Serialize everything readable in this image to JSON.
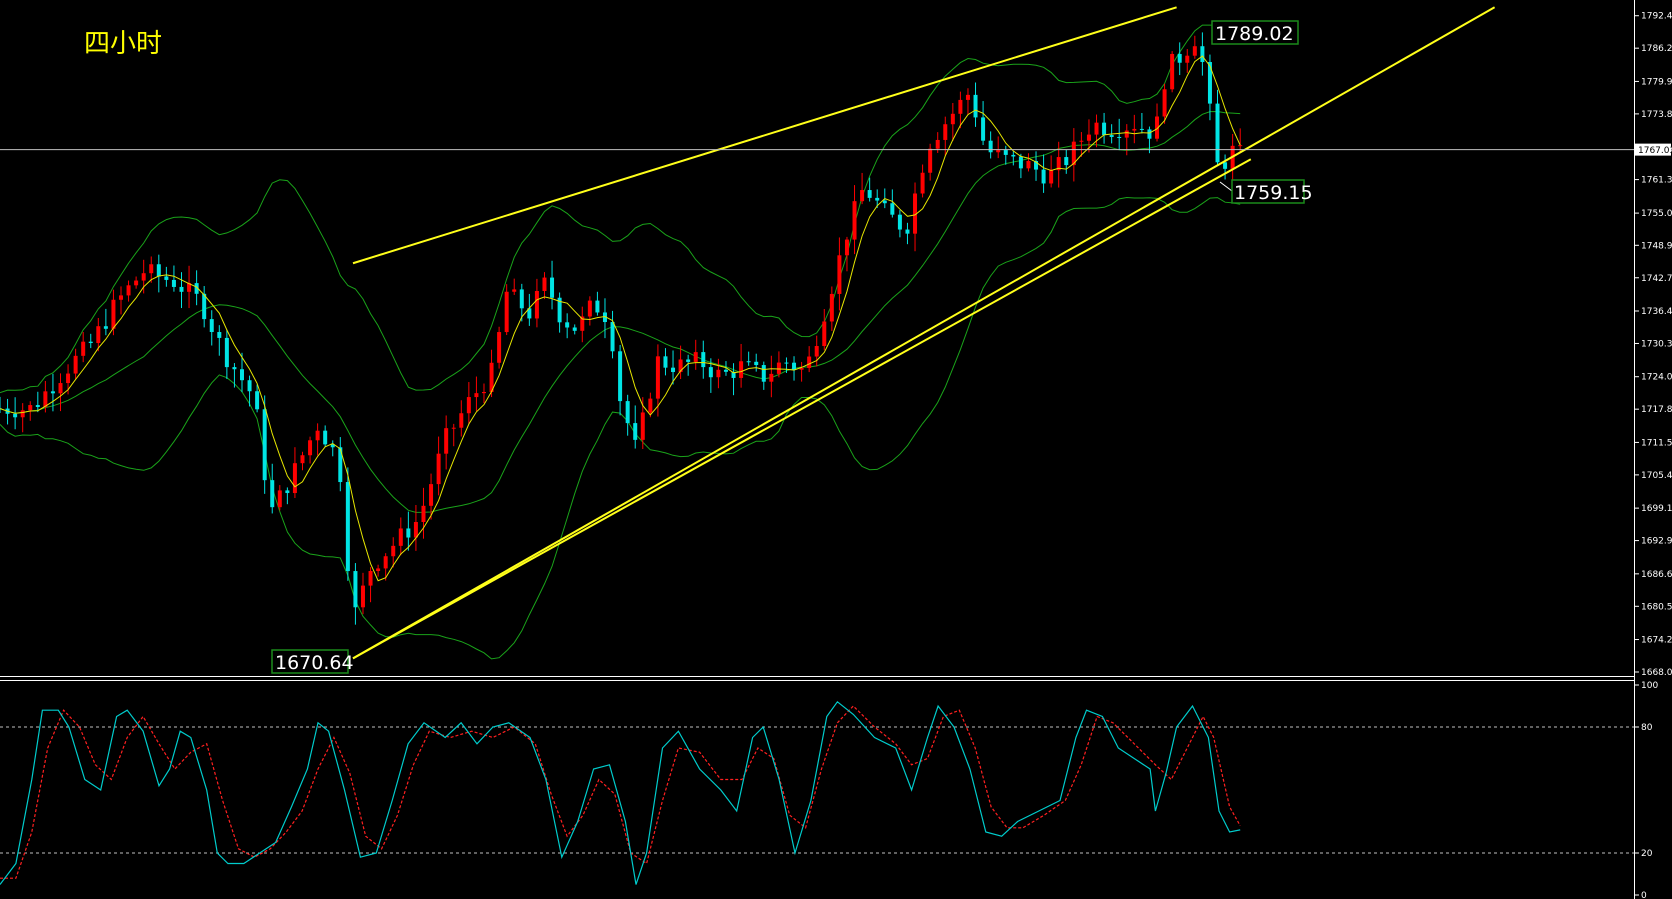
{
  "title": "四小时",
  "current_price_label": "1767.03",
  "annotations": {
    "high": "1789.02",
    "low": "1670.64",
    "recent_low": "1759.15"
  },
  "colors": {
    "background": "#000000",
    "axis": "#ffffff",
    "up": "#ff0000",
    "down": "#00e5e5",
    "bollinger": "#1aa31a",
    "ma": "#e6e600",
    "trendline": "#ffff1a",
    "title": "#ffff00",
    "stoch_k": "#00cccc",
    "stoch_d": "#ff2020",
    "label_bg": "#ffffff",
    "label_border": "#1a8a1a"
  },
  "chart_data": {
    "type": "candlestick",
    "title": "四小时",
    "ylim": [
      1668.05,
      1795.0
    ],
    "y_ticks": [
      "1792.40",
      "1786.25",
      "1779.95",
      "1773.80",
      "1767.03",
      "1761.35",
      "1755.00",
      "1748.90",
      "1742.75",
      "1736.45",
      "1730.30",
      "1724.00",
      "1717.85",
      "1711.55",
      "1705.40",
      "1699.10",
      "1692.95",
      "1686.65",
      "1680.50",
      "1674.20",
      "1668.05"
    ],
    "current_price": 1767.03,
    "channel": {
      "upper": [
        [
          0.333,
          1745.5
        ],
        [
          1.11,
          1794.0
        ]
      ],
      "lower_a": [
        [
          0.333,
          1670.64
        ],
        [
          1.18,
          1765.2
        ]
      ],
      "lower_b": [
        [
          0.333,
          1670.64
        ],
        [
          1.41,
          1794.0
        ]
      ]
    },
    "candle_anchors": [
      [
        0.0,
        1718
      ],
      [
        0.03,
        1718
      ],
      [
        0.06,
        1725
      ],
      [
        0.085,
        1730
      ],
      [
        0.11,
        1738
      ],
      [
        0.135,
        1744
      ],
      [
        0.165,
        1742
      ],
      [
        0.19,
        1738
      ],
      [
        0.21,
        1729
      ],
      [
        0.24,
        1720
      ],
      [
        0.255,
        1698
      ],
      [
        0.275,
        1705
      ],
      [
        0.3,
        1715
      ],
      [
        0.32,
        1708
      ],
      [
        0.333,
        1678
      ],
      [
        0.35,
        1688
      ],
      [
        0.37,
        1692
      ],
      [
        0.395,
        1697
      ],
      [
        0.42,
        1712
      ],
      [
        0.445,
        1720
      ],
      [
        0.465,
        1725
      ],
      [
        0.478,
        1740
      ],
      [
        0.5,
        1736
      ],
      [
        0.515,
        1742
      ],
      [
        0.53,
        1735
      ],
      [
        0.545,
        1733
      ],
      [
        0.56,
        1738
      ],
      [
        0.575,
        1735
      ],
      [
        0.585,
        1720
      ],
      [
        0.6,
        1710
      ],
      [
        0.62,
        1727
      ],
      [
        0.64,
        1726
      ],
      [
        0.66,
        1727
      ],
      [
        0.68,
        1724
      ],
      [
        0.7,
        1726
      ],
      [
        0.72,
        1724
      ],
      [
        0.74,
        1727
      ],
      [
        0.76,
        1725
      ],
      [
        0.78,
        1738
      ],
      [
        0.8,
        1752
      ],
      [
        0.815,
        1760
      ],
      [
        0.835,
        1755
      ],
      [
        0.855,
        1752
      ],
      [
        0.875,
        1768
      ],
      [
        0.895,
        1773
      ],
      [
        0.915,
        1778
      ],
      [
        0.93,
        1767
      ],
      [
        0.95,
        1765
      ],
      [
        0.97,
        1764
      ],
      [
        0.99,
        1762
      ],
      [
        1.01,
        1766
      ],
      [
        1.03,
        1772
      ],
      [
        1.05,
        1771
      ],
      [
        1.07,
        1772
      ],
      [
        1.09,
        1770
      ],
      [
        1.1,
        1782
      ],
      [
        1.115,
        1785
      ],
      [
        1.13,
        1789
      ],
      [
        1.14,
        1776
      ],
      [
        1.15,
        1762
      ],
      [
        1.16,
        1767
      ],
      [
        1.17,
        1766
      ]
    ],
    "stochastic": {
      "levels": [
        "100",
        "80",
        "20",
        "0"
      ],
      "k": [
        [
          0.0,
          5
        ],
        [
          0.015,
          15
        ],
        [
          0.03,
          55
        ],
        [
          0.04,
          88
        ],
        [
          0.055,
          88
        ],
        [
          0.065,
          80
        ],
        [
          0.08,
          55
        ],
        [
          0.095,
          50
        ],
        [
          0.11,
          85
        ],
        [
          0.12,
          88
        ],
        [
          0.135,
          78
        ],
        [
          0.15,
          52
        ],
        [
          0.16,
          60
        ],
        [
          0.17,
          78
        ],
        [
          0.18,
          75
        ],
        [
          0.195,
          50
        ],
        [
          0.205,
          20
        ],
        [
          0.215,
          15
        ],
        [
          0.23,
          15
        ],
        [
          0.245,
          20
        ],
        [
          0.26,
          25
        ],
        [
          0.275,
          42
        ],
        [
          0.29,
          60
        ],
        [
          0.3,
          82
        ],
        [
          0.31,
          78
        ],
        [
          0.325,
          50
        ],
        [
          0.34,
          18
        ],
        [
          0.355,
          20
        ],
        [
          0.37,
          45
        ],
        [
          0.385,
          72
        ],
        [
          0.4,
          82
        ],
        [
          0.42,
          75
        ],
        [
          0.435,
          82
        ],
        [
          0.45,
          72
        ],
        [
          0.465,
          80
        ],
        [
          0.48,
          82
        ],
        [
          0.5,
          75
        ],
        [
          0.515,
          55
        ],
        [
          0.53,
          18
        ],
        [
          0.545,
          35
        ],
        [
          0.56,
          60
        ],
        [
          0.575,
          62
        ],
        [
          0.59,
          35
        ],
        [
          0.6,
          5
        ],
        [
          0.61,
          20
        ],
        [
          0.625,
          70
        ],
        [
          0.64,
          78
        ],
        [
          0.66,
          60
        ],
        [
          0.68,
          50
        ],
        [
          0.695,
          40
        ],
        [
          0.71,
          75
        ],
        [
          0.72,
          80
        ],
        [
          0.735,
          55
        ],
        [
          0.75,
          20
        ],
        [
          0.765,
          45
        ],
        [
          0.78,
          85
        ],
        [
          0.79,
          92
        ],
        [
          0.805,
          86
        ],
        [
          0.825,
          75
        ],
        [
          0.845,
          70
        ],
        [
          0.86,
          50
        ],
        [
          0.875,
          75
        ],
        [
          0.885,
          90
        ],
        [
          0.9,
          80
        ],
        [
          0.915,
          60
        ],
        [
          0.93,
          30
        ],
        [
          0.945,
          28
        ],
        [
          0.96,
          35
        ],
        [
          0.98,
          40
        ],
        [
          1.0,
          45
        ],
        [
          1.015,
          75
        ],
        [
          1.025,
          88
        ],
        [
          1.04,
          85
        ],
        [
          1.055,
          70
        ],
        [
          1.07,
          65
        ],
        [
          1.085,
          60
        ],
        [
          1.09,
          40
        ],
        [
          1.1,
          58
        ],
        [
          1.11,
          80
        ],
        [
          1.125,
          90
        ],
        [
          1.14,
          75
        ],
        [
          1.15,
          40
        ],
        [
          1.16,
          30
        ],
        [
          1.17,
          31
        ]
      ],
      "d": [
        [
          0.0,
          8
        ],
        [
          0.015,
          8
        ],
        [
          0.03,
          30
        ],
        [
          0.045,
          70
        ],
        [
          0.06,
          88
        ],
        [
          0.075,
          80
        ],
        [
          0.09,
          62
        ],
        [
          0.105,
          55
        ],
        [
          0.12,
          75
        ],
        [
          0.135,
          85
        ],
        [
          0.15,
          72
        ],
        [
          0.165,
          60
        ],
        [
          0.18,
          68
        ],
        [
          0.195,
          72
        ],
        [
          0.21,
          45
        ],
        [
          0.225,
          22
        ],
        [
          0.24,
          18
        ],
        [
          0.255,
          22
        ],
        [
          0.27,
          30
        ],
        [
          0.285,
          40
        ],
        [
          0.3,
          60
        ],
        [
          0.315,
          75
        ],
        [
          0.33,
          58
        ],
        [
          0.345,
          28
        ],
        [
          0.36,
          22
        ],
        [
          0.375,
          38
        ],
        [
          0.39,
          62
        ],
        [
          0.405,
          78
        ],
        [
          0.425,
          75
        ],
        [
          0.445,
          78
        ],
        [
          0.465,
          75
        ],
        [
          0.485,
          80
        ],
        [
          0.505,
          72
        ],
        [
          0.52,
          48
        ],
        [
          0.535,
          28
        ],
        [
          0.55,
          38
        ],
        [
          0.565,
          55
        ],
        [
          0.58,
          48
        ],
        [
          0.595,
          20
        ],
        [
          0.61,
          15
        ],
        [
          0.625,
          45
        ],
        [
          0.64,
          70
        ],
        [
          0.66,
          68
        ],
        [
          0.68,
          55
        ],
        [
          0.7,
          55
        ],
        [
          0.715,
          70
        ],
        [
          0.73,
          65
        ],
        [
          0.745,
          38
        ],
        [
          0.76,
          32
        ],
        [
          0.775,
          60
        ],
        [
          0.79,
          82
        ],
        [
          0.805,
          90
        ],
        [
          0.825,
          80
        ],
        [
          0.845,
          72
        ],
        [
          0.86,
          62
        ],
        [
          0.875,
          65
        ],
        [
          0.89,
          85
        ],
        [
          0.905,
          88
        ],
        [
          0.92,
          70
        ],
        [
          0.935,
          42
        ],
        [
          0.95,
          32
        ],
        [
          0.965,
          32
        ],
        [
          0.985,
          38
        ],
        [
          1.005,
          45
        ],
        [
          1.02,
          62
        ],
        [
          1.035,
          85
        ],
        [
          1.05,
          82
        ],
        [
          1.07,
          72
        ],
        [
          1.09,
          62
        ],
        [
          1.105,
          55
        ],
        [
          1.12,
          70
        ],
        [
          1.135,
          85
        ],
        [
          1.145,
          75
        ],
        [
          1.16,
          42
        ],
        [
          1.17,
          33
        ]
      ]
    }
  }
}
